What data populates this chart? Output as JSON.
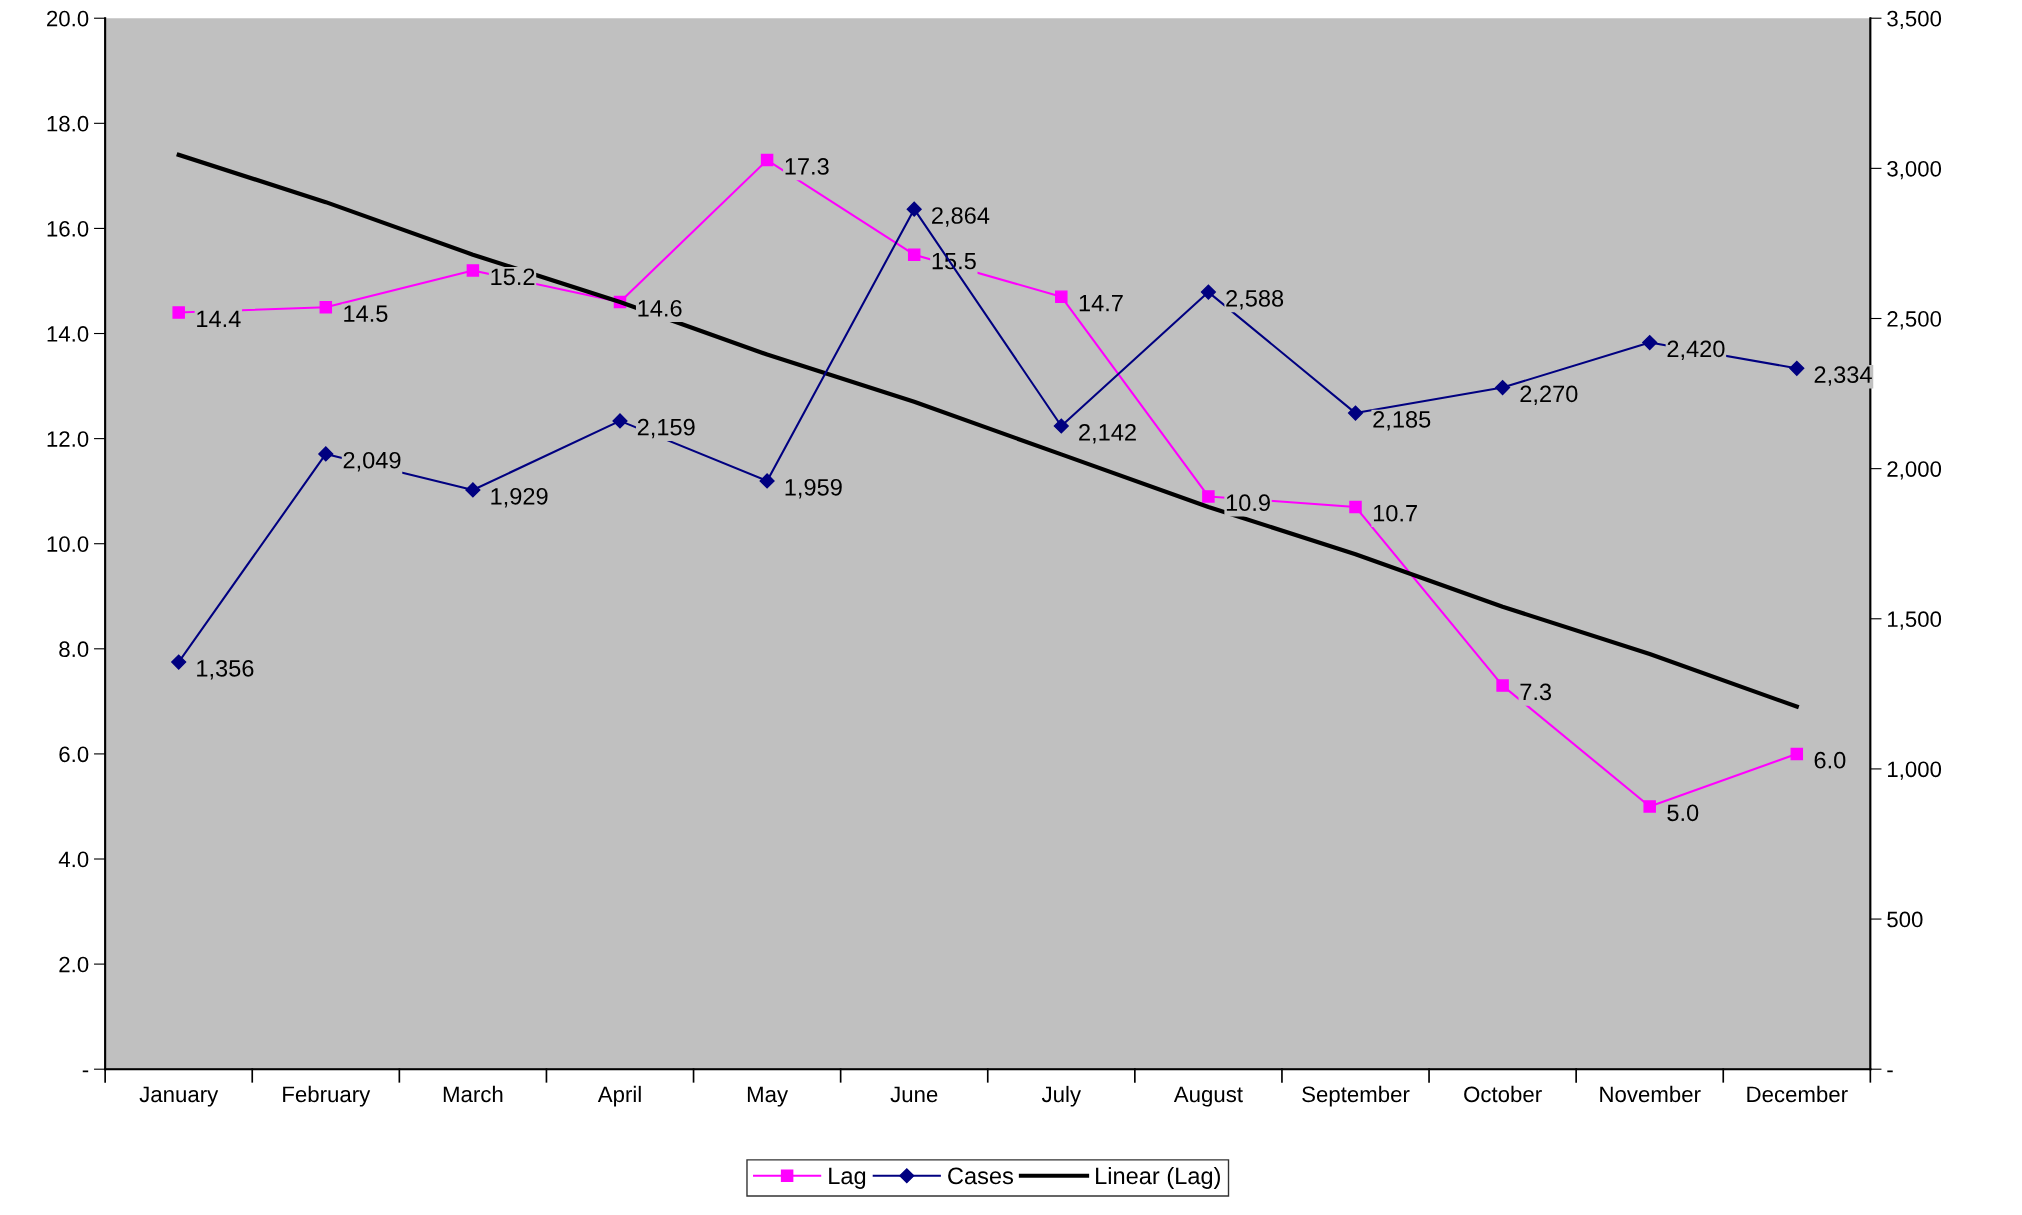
{
  "chart_data": {
    "type": "line",
    "categories": [
      "January",
      "February",
      "March",
      "April",
      "May",
      "June",
      "July",
      "August",
      "September",
      "October",
      "November",
      "December"
    ],
    "series": [
      {
        "name": "Lag",
        "color": "#ff00ff",
        "marker": "square",
        "values": [
          14.4,
          14.5,
          15.2,
          14.6,
          17.3,
          15.5,
          14.7,
          10.9,
          10.7,
          7.3,
          5.0,
          6.0
        ],
        "value_labels": [
          "14.4",
          "14.5",
          "15.2",
          "14.6",
          "17.3",
          "15.5",
          "14.7",
          "10.9",
          "10.7",
          "7.3",
          "5.0",
          "6.0"
        ]
      },
      {
        "name": "Cases",
        "color": "#000080",
        "marker": "diamond",
        "axis": "y2",
        "values": [
          1356,
          2049,
          1929,
          2159,
          1959,
          2864,
          2142,
          2588,
          2185,
          2270,
          2420,
          2334
        ],
        "value_labels": [
          "1,356",
          "2,049",
          "1,929",
          "2,159",
          "1,959",
          "2,864",
          "2,142",
          "2,588",
          "2,185",
          "2,270",
          "2,420",
          "2,334"
        ]
      },
      {
        "name": "Linear (Lag)",
        "color": "#000000",
        "marker": "none",
        "values": [
          17.4,
          16.5,
          15.5,
          14.6,
          13.6,
          12.7,
          11.7,
          10.7,
          9.8,
          8.8,
          7.9,
          6.9
        ]
      }
    ],
    "ylim": [
      0,
      20
    ],
    "yticks": [
      {
        "value": 0,
        "label": "-"
      },
      {
        "value": 2,
        "label": "2.0"
      },
      {
        "value": 4,
        "label": "4.0"
      },
      {
        "value": 6,
        "label": "6.0"
      },
      {
        "value": 8,
        "label": "8.0"
      },
      {
        "value": 10,
        "label": "10.0"
      },
      {
        "value": 12,
        "label": "12.0"
      },
      {
        "value": 14,
        "label": "14.0"
      },
      {
        "value": 16,
        "label": "16.0"
      },
      {
        "value": 18,
        "label": "18.0"
      },
      {
        "value": 20,
        "label": "20.0"
      }
    ],
    "y2lim": [
      0,
      3500
    ],
    "y2ticks": [
      {
        "value": 0,
        "label": "-"
      },
      {
        "value": 500,
        "label": "500"
      },
      {
        "value": 1000,
        "label": "1,000"
      },
      {
        "value": 1500,
        "label": "1,500"
      },
      {
        "value": 2000,
        "label": "2,000"
      },
      {
        "value": 2500,
        "label": "2,500"
      },
      {
        "value": 3000,
        "label": "3,000"
      },
      {
        "value": 3500,
        "label": "3,500"
      }
    ],
    "grid": false,
    "legend": "bottom"
  }
}
